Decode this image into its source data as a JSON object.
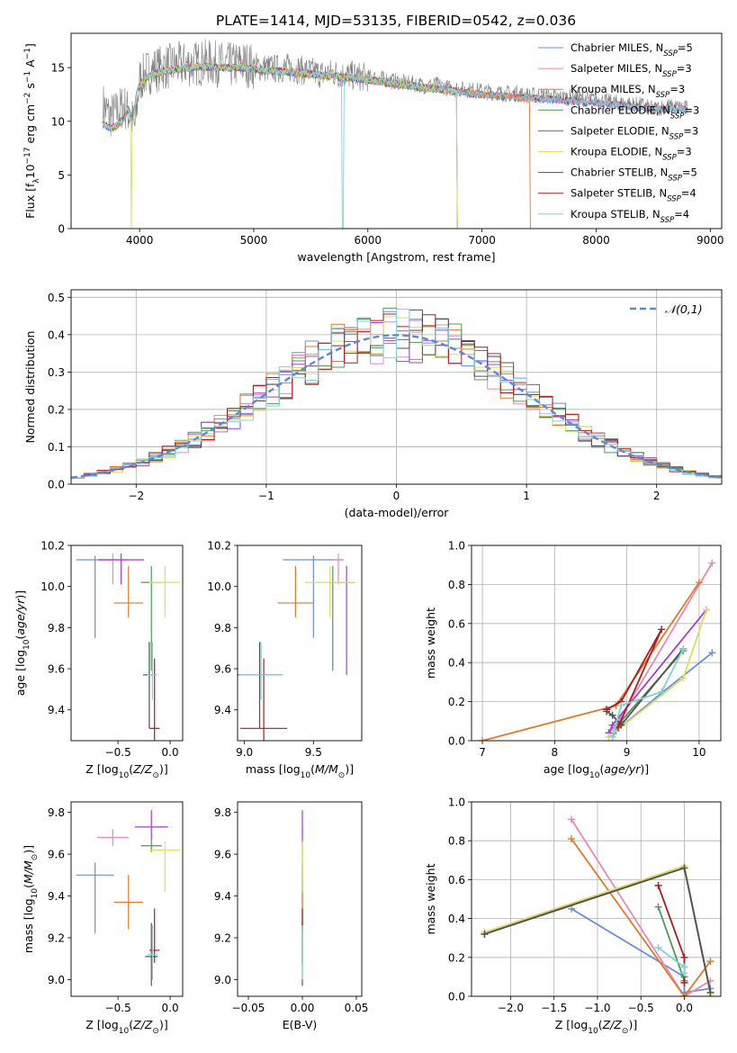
{
  "figure": {
    "title": "PLATE=1414, MJD=53135, FIBERID=0542, z=0.036"
  },
  "colors": {
    "model_palette": [
      "#6a8fd8",
      "#e888b8",
      "#e07a2a",
      "#4d9a58",
      "#a43fcc",
      "#dede5a",
      "#505050",
      "#b01a1a",
      "#7ed4d8"
    ],
    "normal_fit": "#5a8ad6",
    "grid": "#b0b0b0",
    "spectrum_grey": "#808080"
  },
  "chart_data": [
    {
      "id": "spectrum",
      "type": "line",
      "xlabel": "wavelength [Angstrom, rest frame]",
      "ylabel": "Flux [f_λ 10^-17 erg cm^-2 s^-1 A^-1]",
      "xlim": [
        3400,
        9100
      ],
      "ylim": [
        0,
        18.2
      ],
      "xticks": [
        4000,
        5000,
        6000,
        7000,
        8000,
        9000
      ],
      "yticks": [
        0,
        5,
        10,
        15
      ],
      "grid": false,
      "legend_position": "top-right",
      "legend": [
        {
          "name": "Chabrier MILES",
          "nssp": "N_SSP=5"
        },
        {
          "name": "Salpeter MILES",
          "nssp": "N_SSP=3"
        },
        {
          "name": "Kroupa MILES",
          "nssp": "N_SSP=3"
        },
        {
          "name": "Chabrier ELODIE",
          "nssp": "N_SSP=3"
        },
        {
          "name": "Salpeter ELODIE",
          "nssp": "N_SSP=3"
        },
        {
          "name": "Kroupa ELODIE",
          "nssp": "N_SSP=3"
        },
        {
          "name": "Chabrier STELIB",
          "nssp": "N_SSP=5"
        },
        {
          "name": "Salpeter STELIB",
          "nssp": "N_SSP=4"
        },
        {
          "name": "Kroupa STELIB",
          "nssp": "N_SSP=4"
        }
      ],
      "observed_spectrum": {
        "x": [
          3680,
          3740,
          3800,
          3860,
          3920,
          3960,
          4000,
          4060,
          4120,
          4200,
          4300,
          4400,
          4500,
          4600,
          4700,
          4800,
          4900,
          5000,
          5100,
          5200,
          5300,
          5400,
          5500,
          5600,
          5700,
          5800,
          5900,
          6000,
          6100,
          6200,
          6300,
          6400,
          6500,
          6600,
          6700,
          6800,
          6900,
          7000,
          7100,
          7200,
          7300,
          7400,
          7500,
          7600,
          7700,
          7800,
          7900,
          8000,
          8100,
          8200,
          8300,
          8400,
          8500,
          8600,
          8700,
          8800
        ],
        "y": [
          11.5,
          10.5,
          10.8,
          11.5,
          10.5,
          9.5,
          13.8,
          14.5,
          14.8,
          15.0,
          15.2,
          15.3,
          15.4,
          15.5,
          15.3,
          15.2,
          15.4,
          15.1,
          15.0,
          14.9,
          15.0,
          14.8,
          14.6,
          14.4,
          14.5,
          14.3,
          14.2,
          14.1,
          14.0,
          13.8,
          13.6,
          13.5,
          13.3,
          13.4,
          13.1,
          13.0,
          12.9,
          12.8,
          12.7,
          12.6,
          12.6,
          12.4,
          12.4,
          12.3,
          12.2,
          12.2,
          12.1,
          12.0,
          11.8,
          11.7,
          11.6,
          11.5,
          11.1,
          11.4,
          11.3,
          11.2
        ]
      },
      "model_continuum": {
        "x": [
          3680,
          3740,
          3800,
          3860,
          3900,
          3940,
          3980,
          4050,
          4150,
          4300,
          4500,
          4700,
          4900,
          5100,
          5300,
          5500,
          5700,
          5900,
          6100,
          6300,
          6500,
          6700,
          6900,
          7100,
          7300,
          7500,
          7700,
          7900,
          8100,
          8300,
          8500,
          8700,
          8800
        ],
        "y": [
          9.8,
          9.4,
          9.6,
          10.2,
          11.2,
          9.8,
          13.0,
          14.0,
          14.5,
          14.8,
          15.1,
          15.0,
          15.0,
          14.7,
          14.6,
          14.4,
          14.2,
          14.0,
          13.7,
          13.4,
          13.1,
          12.9,
          12.6,
          12.4,
          12.2,
          12.1,
          12.0,
          11.8,
          11.6,
          11.4,
          11.1,
          11.2,
          11.0
        ]
      },
      "model_coverage_end": [
        8780,
        8780,
        7420,
        6780,
        6780,
        6780,
        8800,
        8800,
        8800
      ],
      "absorption_dips": [
        {
          "model": 8,
          "x": 5780
        },
        {
          "model": 5,
          "x": 3930
        },
        {
          "model": 3,
          "x": 6790
        }
      ]
    },
    {
      "id": "residual_histogram",
      "type": "line",
      "xlabel": "(data-model)/error",
      "ylabel": "Normed distribution",
      "xlim": [
        -2.5,
        2.5
      ],
      "ylim": [
        0,
        0.52
      ],
      "xticks": [
        -2,
        -1,
        0,
        1,
        2
      ],
      "yticks": [
        0.0,
        0.1,
        0.2,
        0.3,
        0.4,
        0.5
      ],
      "grid": true,
      "legend_position": "top-right",
      "normal_label": "𝒩(0,1)",
      "bin_width": 0.1
    },
    {
      "id": "age_vs_Z",
      "type": "scatter",
      "xlabel": "Z [log10(Z/Z⊙)]",
      "ylabel": "age [log10(age/yr)]",
      "xlim": [
        -0.95,
        0.12
      ],
      "ylim": [
        9.25,
        10.2
      ],
      "xticks": [
        -0.5,
        0.0
      ],
      "yticks": [
        9.4,
        9.6,
        9.8,
        10.0,
        10.2
      ],
      "grid": false,
      "points": [
        {
          "x": -0.72,
          "y": 10.13,
          "xerr": [
            0.18,
            0.18
          ],
          "yerr": [
            0.38,
            0.02
          ]
        },
        {
          "x": -0.55,
          "y": 10.13,
          "xerr": [
            0.15,
            0.15
          ],
          "yerr": [
            0.12,
            0.03
          ]
        },
        {
          "x": -0.4,
          "y": 9.92,
          "xerr": [
            0.14,
            0.14
          ],
          "yerr": [
            0.07,
            0.18
          ]
        },
        {
          "x": -0.18,
          "y": 10.02,
          "xerr": [
            0.1,
            0.1
          ],
          "yerr": [
            0.43,
            0.08
          ]
        },
        {
          "x": -0.47,
          "y": 10.13,
          "xerr": [
            0.22,
            0.22
          ],
          "yerr": [
            0.12,
            0.03
          ]
        },
        {
          "x": -0.05,
          "y": 10.02,
          "xerr": [
            0.15,
            0.15
          ],
          "yerr": [
            0.17,
            0.08
          ]
        },
        {
          "x": -0.2,
          "y": 9.57,
          "xerr": [
            0.06,
            0.06
          ],
          "yerr": [
            0.26,
            0.16
          ]
        },
        {
          "x": -0.15,
          "y": 9.31,
          "xerr": [
            0.05,
            0.05
          ],
          "yerr": [
            0.06,
            0.34
          ]
        },
        {
          "x": -0.17,
          "y": 9.57,
          "xerr": [
            0.05,
            0.05
          ],
          "yerr": [
            0.12,
            0.16
          ]
        }
      ]
    },
    {
      "id": "age_vs_mass",
      "type": "scatter",
      "xlabel": "mass [log10(M/M⊙)]",
      "ylabel": "",
      "xlim": [
        8.95,
        9.85
      ],
      "ylim": [
        9.25,
        10.2
      ],
      "xticks": [
        9.0,
        9.5
      ],
      "yticks": [
        9.4,
        9.6,
        9.8,
        10.0,
        10.2
      ],
      "grid": false,
      "points": [
        {
          "x": 9.5,
          "y": 10.13,
          "xerr": [
            0.22,
            0.22
          ],
          "yerr": [
            0.38,
            0.02
          ]
        },
        {
          "x": 9.68,
          "y": 10.13,
          "xerr": [
            0.04,
            0.04
          ],
          "yerr": [
            0.12,
            0.03
          ]
        },
        {
          "x": 9.37,
          "y": 9.92,
          "xerr": [
            0.13,
            0.13
          ],
          "yerr": [
            0.07,
            0.18
          ]
        },
        {
          "x": 9.64,
          "y": 10.02,
          "xerr": [
            0.03,
            0.03
          ],
          "yerr": [
            0.43,
            0.08
          ]
        },
        {
          "x": 9.74,
          "y": 10.02,
          "xerr": [
            0.06,
            0.06
          ],
          "yerr": [
            0.45,
            0.08
          ]
        },
        {
          "x": 9.62,
          "y": 10.02,
          "xerr": [
            0.18,
            0.18
          ],
          "yerr": [
            0.17,
            0.08
          ]
        },
        {
          "x": 9.11,
          "y": 9.57,
          "xerr": [
            0.16,
            0.16
          ],
          "yerr": [
            0.26,
            0.16
          ]
        },
        {
          "x": 9.14,
          "y": 9.31,
          "xerr": [
            0.17,
            0.17
          ],
          "yerr": [
            0.06,
            0.34
          ]
        },
        {
          "x": 9.12,
          "y": 9.57,
          "xerr": [
            0.16,
            0.16
          ],
          "yerr": [
            0.12,
            0.16
          ]
        }
      ]
    },
    {
      "id": "weight_vs_age",
      "type": "line",
      "xlabel": "age [log10(age/yr)]",
      "ylabel": "mass weight",
      "xlim": [
        6.85,
        10.3
      ],
      "ylim": [
        0,
        1.0
      ],
      "xticks": [
        7,
        8,
        9,
        10
      ],
      "yticks": [
        0.0,
        0.2,
        0.4,
        0.6,
        0.8,
        1.0
      ],
      "grid": true,
      "series": [
        {
          "points": [
            [
              8.75,
              0.02
            ],
            [
              8.85,
              0.05
            ],
            [
              9.5,
              0.25
            ],
            [
              10.18,
              0.45
            ]
          ]
        },
        {
          "points": [
            [
              8.75,
              0.04
            ],
            [
              8.85,
              0.08
            ],
            [
              10.18,
              0.91
            ]
          ]
        },
        {
          "points": [
            [
              7.0,
              0.0
            ],
            [
              8.85,
              0.18
            ],
            [
              10.0,
              0.81
            ]
          ]
        },
        {
          "points": [
            [
              8.8,
              0.02
            ],
            [
              8.92,
              0.1
            ],
            [
              9.78,
              0.46
            ]
          ]
        },
        {
          "points": [
            [
              8.75,
              0.04
            ],
            [
              8.8,
              0.08
            ],
            [
              10.1,
              0.67
            ]
          ]
        },
        {
          "points": [
            [
              8.75,
              0.02
            ],
            [
              9.78,
              0.32
            ],
            [
              10.1,
              0.67
            ]
          ]
        },
        {
          "points": [
            [
              8.72,
              0.15
            ],
            [
              8.8,
              0.13
            ],
            [
              8.92,
              0.08
            ],
            [
              9.78,
              0.47
            ]
          ]
        },
        {
          "points": [
            [
              8.72,
              0.16
            ],
            [
              8.92,
              0.2
            ],
            [
              9.48,
              0.57
            ],
            [
              8.88,
              0.07
            ]
          ]
        },
        {
          "points": [
            [
              8.8,
              0.02
            ],
            [
              8.92,
              0.18
            ],
            [
              9.48,
              0.25
            ],
            [
              9.78,
              0.47
            ]
          ]
        }
      ]
    },
    {
      "id": "mass_vs_Z",
      "type": "scatter",
      "xlabel": "Z [log10(Z/Z⊙)]",
      "ylabel": "mass [log10(M/M⊙)]",
      "xlim": [
        -0.95,
        0.12
      ],
      "ylim": [
        8.92,
        9.85
      ],
      "xticks": [
        -0.5,
        0.0
      ],
      "yticks": [
        9.0,
        9.2,
        9.4,
        9.6,
        9.8
      ],
      "grid": false,
      "points": [
        {
          "x": -0.72,
          "y": 9.5,
          "xerr": [
            0.18,
            0.18
          ],
          "yerr": [
            0.28,
            0.06
          ]
        },
        {
          "x": -0.55,
          "y": 9.68,
          "xerr": [
            0.15,
            0.15
          ],
          "yerr": [
            0.04,
            0.04
          ]
        },
        {
          "x": -0.4,
          "y": 9.37,
          "xerr": [
            0.14,
            0.14
          ],
          "yerr": [
            0.13,
            0.13
          ]
        },
        {
          "x": -0.18,
          "y": 9.64,
          "xerr": [
            0.1,
            0.1
          ],
          "yerr": [
            0.03,
            0.03
          ]
        },
        {
          "x": -0.18,
          "y": 9.73,
          "xerr": [
            0.16,
            0.16
          ],
          "yerr": [
            0.06,
            0.08
          ]
        },
        {
          "x": -0.05,
          "y": 9.62,
          "xerr": [
            0.15,
            0.15
          ],
          "yerr": [
            0.2,
            0.04
          ]
        },
        {
          "x": -0.18,
          "y": 9.11,
          "xerr": [
            0.06,
            0.06
          ],
          "yerr": [
            0.14,
            0.16
          ]
        },
        {
          "x": -0.15,
          "y": 9.14,
          "xerr": [
            0.05,
            0.05
          ],
          "yerr": [
            0.06,
            0.2
          ]
        },
        {
          "x": -0.17,
          "y": 9.12,
          "xerr": [
            0.05,
            0.05
          ],
          "yerr": [
            0.12,
            0.14
          ]
        }
      ]
    },
    {
      "id": "mass_vs_ebv",
      "type": "scatter",
      "xlabel": "E(B-V)",
      "ylabel": "",
      "xlim": [
        -0.06,
        0.055
      ],
      "ylim": [
        8.92,
        9.85
      ],
      "xticks": [
        -0.05,
        0.0,
        0.05
      ],
      "yticks": [
        9.0,
        9.2,
        9.4,
        9.6,
        9.8
      ],
      "grid": false,
      "points": [
        {
          "x": 0.0,
          "y": 9.5,
          "yerr": [
            0.28,
            0.06
          ]
        },
        {
          "x": 0.0,
          "y": 9.68,
          "yerr": [
            0.04,
            0.04
          ]
        },
        {
          "x": 0.0,
          "y": 9.37,
          "yerr": [
            0.13,
            0.13
          ]
        },
        {
          "x": 0.0,
          "y": 9.64,
          "yerr": [
            0.22,
            0.03
          ]
        },
        {
          "x": 0.0,
          "y": 9.73,
          "yerr": [
            0.06,
            0.08
          ]
        },
        {
          "x": 0.0,
          "y": 9.62,
          "yerr": [
            0.2,
            0.04
          ]
        },
        {
          "x": 0.0,
          "y": 9.11,
          "yerr": [
            0.14,
            0.16
          ]
        },
        {
          "x": 0.0,
          "y": 9.14,
          "yerr": [
            0.06,
            0.2
          ]
        },
        {
          "x": 0.0,
          "y": 9.12,
          "yerr": [
            0.12,
            0.14
          ]
        }
      ]
    },
    {
      "id": "weight_vs_Z",
      "type": "line",
      "xlabel": "Z [log10(Z/Z⊙)]",
      "ylabel": "mass weight",
      "xlim": [
        -2.45,
        0.42
      ],
      "ylim": [
        0,
        1.0
      ],
      "xticks": [
        -2.0,
        -1.5,
        -1.0,
        -0.5,
        0.0
      ],
      "yticks": [
        0.0,
        0.2,
        0.4,
        0.6,
        0.8,
        1.0
      ],
      "grid": true,
      "series": [
        {
          "points": [
            [
              -1.3,
              0.45
            ],
            [
              0.0,
              0.1
            ],
            [
              0.0,
              0.02
            ],
            [
              0.3,
              0.04
            ]
          ]
        },
        {
          "points": [
            [
              -1.3,
              0.91
            ],
            [
              0.0,
              0.0
            ],
            [
              0.3,
              0.08
            ]
          ]
        },
        {
          "points": [
            [
              -1.3,
              0.81
            ],
            [
              0.0,
              0.0
            ],
            [
              0.3,
              0.18
            ]
          ]
        },
        {
          "points": [
            [
              -0.3,
              0.46
            ],
            [
              0.0,
              0.08
            ],
            [
              0.0,
              0.1
            ]
          ]
        },
        {
          "points": [
            [
              -2.3,
              0.32
            ],
            [
              0.0,
              0.67
            ],
            [
              0.3,
              0.02
            ]
          ]
        },
        {
          "points": [
            [
              -2.3,
              0.33
            ],
            [
              0.0,
              0.67
            ],
            [
              0.3,
              0.01
            ]
          ]
        },
        {
          "points": [
            [
              -2.3,
              0.32
            ],
            [
              0.0,
              0.66
            ],
            [
              0.3,
              0.02
            ]
          ]
        },
        {
          "points": [
            [
              -0.3,
              0.57
            ],
            [
              0.0,
              0.2
            ],
            [
              0.0,
              0.07
            ]
          ]
        },
        {
          "points": [
            [
              -0.3,
              0.25
            ],
            [
              0.0,
              0.15
            ],
            [
              0.0,
              0.12
            ]
          ]
        }
      ]
    }
  ]
}
